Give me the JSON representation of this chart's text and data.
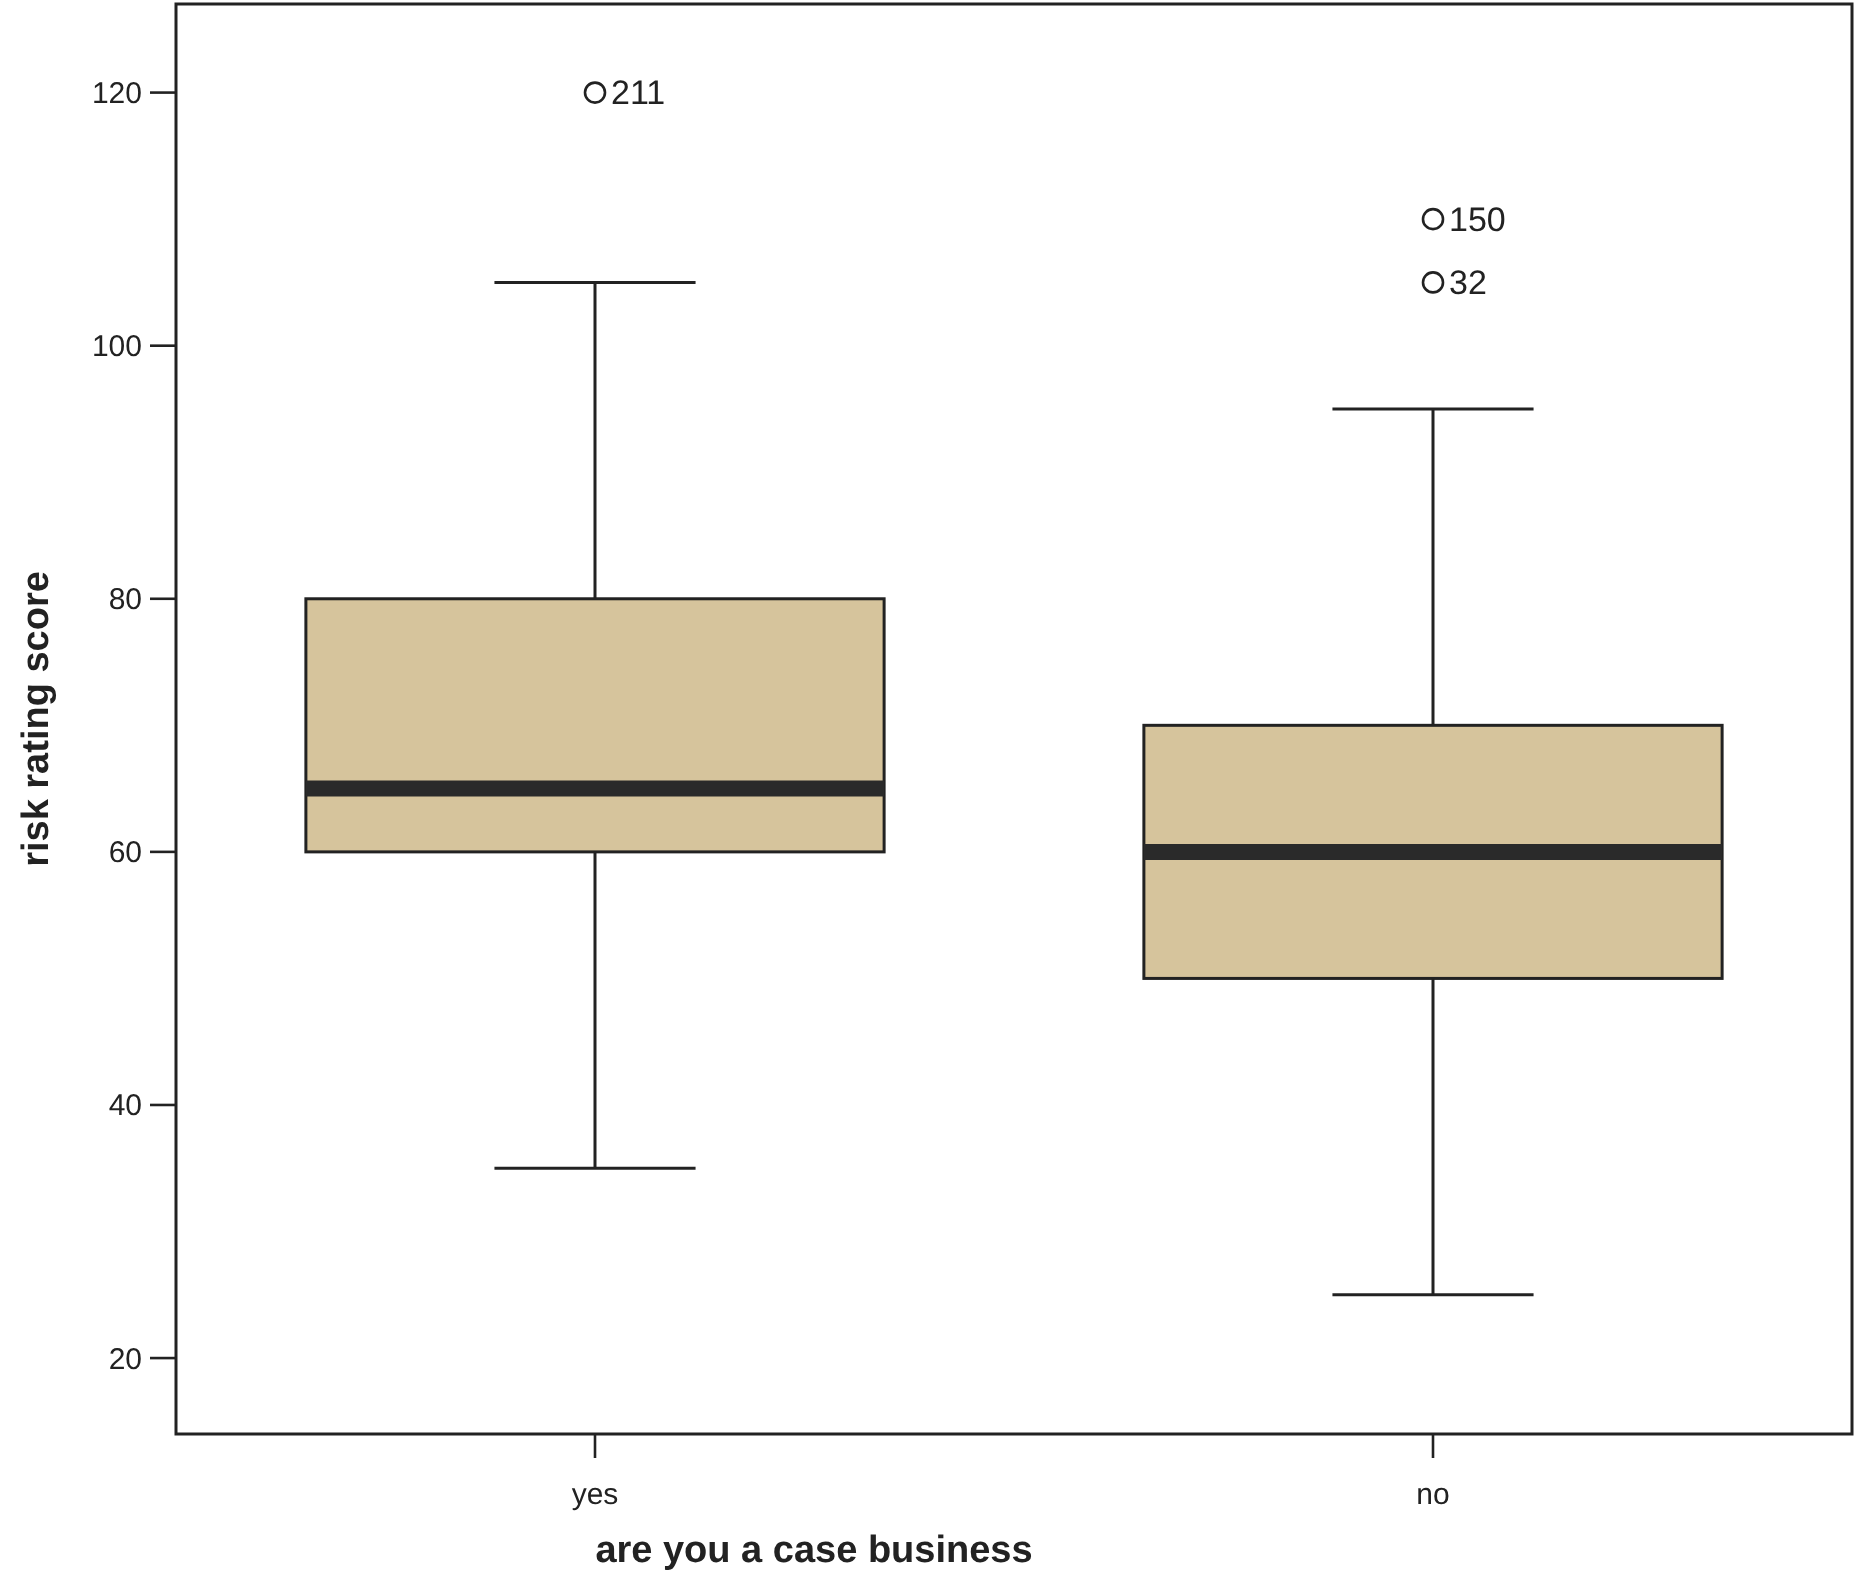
{
  "chart_data": {
    "type": "box",
    "xlabel": "are you a case business",
    "ylabel": "risk rating score",
    "categories": [
      "yes",
      "no"
    ],
    "boxes": [
      {
        "low": 35,
        "q1": 60,
        "median": 65,
        "q3": 80,
        "high": 105,
        "outliers": [
          120
        ]
      },
      {
        "low": 25,
        "q1": 50,
        "median": 60,
        "q3": 70,
        "high": 95,
        "outliers": [
          110,
          105
        ]
      }
    ],
    "color": "#d6c49c",
    "ylim": [
      14,
      127
    ],
    "yticks": [
      20,
      40,
      60,
      80,
      100,
      120
    ],
    "annotations": [
      "211",
      "150",
      "32"
    ]
  }
}
